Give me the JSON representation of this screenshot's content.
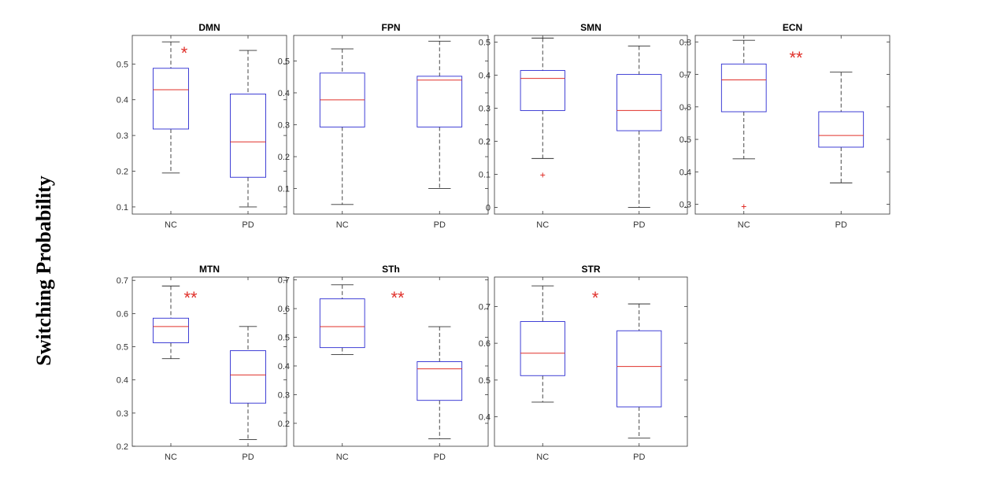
{
  "figure": {
    "ylabel": "Switching Probability",
    "colors": {
      "box": "#2b2bd1",
      "median": "#e0302a",
      "whisker": "#333333",
      "outlier": "#e0302a",
      "star": "#e0302a",
      "frame": "#333333"
    }
  },
  "chart_data": [
    {
      "type": "boxplot",
      "title": "DMN",
      "categories": [
        "NC",
        "PD"
      ],
      "yrange": [
        0.08,
        0.58
      ],
      "yticks": [
        0.1,
        0.2,
        0.3,
        0.4,
        0.5
      ],
      "yticklabels": [
        "0.1",
        "0.2",
        "0.3",
        "0.4",
        "0.5"
      ],
      "groups": [
        {
          "label": "NC",
          "whisker_low": 0.195,
          "q1": 0.318,
          "median": 0.428,
          "q3": 0.488,
          "whisker_high": 0.562,
          "outliers": []
        },
        {
          "label": "PD",
          "whisker_low": 0.1,
          "q1": 0.183,
          "median": 0.282,
          "q3": 0.416,
          "whisker_high": 0.538,
          "outliers": []
        }
      ],
      "significance": "*"
    },
    {
      "type": "boxplot",
      "title": "FPN",
      "categories": [
        "NC",
        "PD"
      ],
      "yrange": [
        0.02,
        0.58
      ],
      "yticks": [
        0.1,
        0.2,
        0.3,
        0.4,
        0.5
      ],
      "yticklabels": [
        "0.1",
        "0.2",
        "0.3",
        "0.4",
        "0.5"
      ],
      "groups": [
        {
          "label": "NC",
          "whisker_low": 0.05,
          "q1": 0.293,
          "median": 0.378,
          "q3": 0.462,
          "whisker_high": 0.538,
          "outliers": []
        },
        {
          "label": "PD",
          "whisker_low": 0.1,
          "q1": 0.293,
          "median": 0.44,
          "q3": 0.452,
          "whisker_high": 0.562,
          "outliers": []
        }
      ],
      "significance": ""
    },
    {
      "type": "boxplot",
      "title": "SMN",
      "categories": [
        "NC",
        "PD"
      ],
      "yrange": [
        -0.02,
        0.52
      ],
      "yticks": [
        0,
        0.1,
        0.2,
        0.3,
        0.4,
        0.5
      ],
      "yticklabels": [
        "0",
        "0.1",
        "0.2",
        "0.3",
        "0.4",
        "0.5"
      ],
      "groups": [
        {
          "label": "NC",
          "whisker_low": 0.148,
          "q1": 0.293,
          "median": 0.39,
          "q3": 0.414,
          "whisker_high": 0.512,
          "outliers": [
            0.098
          ]
        },
        {
          "label": "PD",
          "whisker_low": 0.0,
          "q1": 0.232,
          "median": 0.293,
          "q3": 0.402,
          "whisker_high": 0.488,
          "outliers": []
        }
      ],
      "significance": ""
    },
    {
      "type": "boxplot",
      "title": "ECN",
      "categories": [
        "NC",
        "PD"
      ],
      "yrange": [
        0.27,
        0.82
      ],
      "yticks": [
        0.3,
        0.4,
        0.5,
        0.6,
        0.7,
        0.8
      ],
      "yticklabels": [
        "0.3",
        "0.4",
        "0.5",
        "0.6",
        "0.7",
        "0.8"
      ],
      "groups": [
        {
          "label": "NC",
          "whisker_low": 0.44,
          "q1": 0.585,
          "median": 0.683,
          "q3": 0.732,
          "whisker_high": 0.805,
          "outliers": [
            0.293
          ]
        },
        {
          "label": "PD",
          "whisker_low": 0.366,
          "q1": 0.476,
          "median": 0.512,
          "q3": 0.585,
          "whisker_high": 0.707,
          "outliers": []
        }
      ],
      "significance": "**"
    },
    {
      "type": "boxplot",
      "title": "MTN",
      "categories": [
        "NC",
        "PD"
      ],
      "yrange": [
        0.2,
        0.71
      ],
      "yticks": [
        0.2,
        0.3,
        0.4,
        0.5,
        0.6,
        0.7
      ],
      "yticklabels": [
        "0.2",
        "0.3",
        "0.4",
        "0.5",
        "0.6",
        "0.7"
      ],
      "groups": [
        {
          "label": "NC",
          "whisker_low": 0.464,
          "q1": 0.512,
          "median": 0.561,
          "q3": 0.586,
          "whisker_high": 0.683,
          "outliers": []
        },
        {
          "label": "PD",
          "whisker_low": 0.22,
          "q1": 0.33,
          "median": 0.415,
          "q3": 0.488,
          "whisker_high": 0.561,
          "outliers": []
        }
      ],
      "significance": "**"
    },
    {
      "type": "boxplot",
      "title": "STh",
      "categories": [
        "NC",
        "PD"
      ],
      "yrange": [
        0.12,
        0.71
      ],
      "yticks": [
        0.2,
        0.3,
        0.4,
        0.5,
        0.6,
        0.7
      ],
      "yticklabels": [
        "0.2",
        "0.3",
        "0.4",
        "0.5",
        "0.6",
        "0.7"
      ],
      "groups": [
        {
          "label": "NC",
          "whisker_low": 0.44,
          "q1": 0.464,
          "median": 0.537,
          "q3": 0.634,
          "whisker_high": 0.683,
          "outliers": []
        },
        {
          "label": "PD",
          "whisker_low": 0.146,
          "q1": 0.28,
          "median": 0.39,
          "q3": 0.415,
          "whisker_high": 0.537,
          "outliers": []
        }
      ],
      "significance": "**"
    },
    {
      "type": "boxplot",
      "title": "STR",
      "categories": [
        "NC",
        "PD"
      ],
      "yrange": [
        0.32,
        0.78
      ],
      "yticks": [
        0.4,
        0.5,
        0.6,
        0.7
      ],
      "yticklabels": [
        "0.4",
        "0.5",
        "0.6",
        "0.7"
      ],
      "groups": [
        {
          "label": "NC",
          "whisker_low": 0.44,
          "q1": 0.512,
          "median": 0.573,
          "q3": 0.659,
          "whisker_high": 0.756,
          "outliers": []
        },
        {
          "label": "PD",
          "whisker_low": 0.342,
          "q1": 0.427,
          "median": 0.537,
          "q3": 0.634,
          "whisker_high": 0.707,
          "outliers": []
        }
      ],
      "significance": "*"
    }
  ]
}
